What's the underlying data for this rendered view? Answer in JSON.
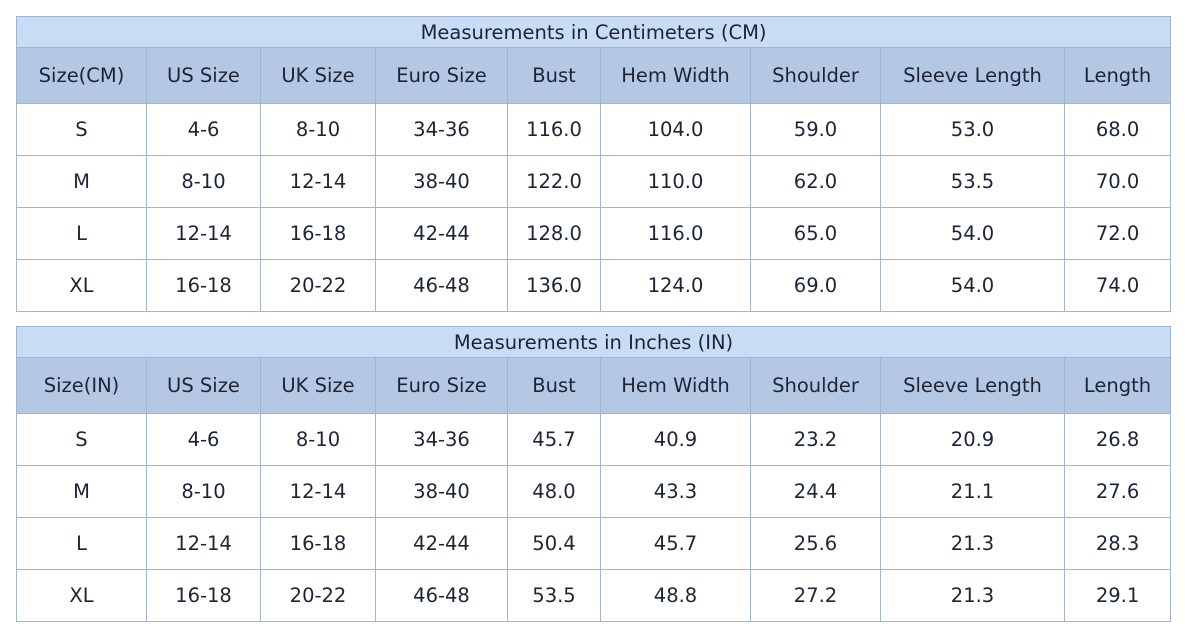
{
  "tables": [
    {
      "title": "Measurements in Centimeters (CM)",
      "headers": [
        "Size(CM)",
        "US Size",
        "UK Size",
        "Euro Size",
        "Bust",
        "Hem Width",
        "Shoulder",
        "Sleeve Length",
        "Length"
      ],
      "rows": [
        [
          "S",
          "4-6",
          "8-10",
          "34-36",
          "116.0",
          "104.0",
          "59.0",
          "53.0",
          "68.0"
        ],
        [
          "M",
          "8-10",
          "12-14",
          "38-40",
          "122.0",
          "110.0",
          "62.0",
          "53.5",
          "70.0"
        ],
        [
          "L",
          "12-14",
          "16-18",
          "42-44",
          "128.0",
          "116.0",
          "65.0",
          "54.0",
          "72.0"
        ],
        [
          "XL",
          "16-18",
          "20-22",
          "46-48",
          "136.0",
          "124.0",
          "69.0",
          "54.0",
          "74.0"
        ]
      ]
    },
    {
      "title": "Measurements in Inches (IN)",
      "headers": [
        "Size(IN)",
        "US Size",
        "UK Size",
        "Euro Size",
        "Bust",
        "Hem Width",
        "Shoulder",
        "Sleeve Length",
        "Length"
      ],
      "rows": [
        [
          "S",
          "4-6",
          "8-10",
          "34-36",
          "45.7",
          "40.9",
          "23.2",
          "20.9",
          "26.8"
        ],
        [
          "M",
          "8-10",
          "12-14",
          "38-40",
          "48.0",
          "43.3",
          "24.4",
          "21.1",
          "27.6"
        ],
        [
          "L",
          "12-14",
          "16-18",
          "42-44",
          "50.4",
          "45.7",
          "25.6",
          "21.3",
          "28.3"
        ],
        [
          "XL",
          "16-18",
          "20-22",
          "46-48",
          "53.5",
          "48.8",
          "27.2",
          "21.3",
          "29.1"
        ]
      ]
    }
  ],
  "colors": {
    "title_bg": "#c9dcf6",
    "header_bg": "#b4c8e4",
    "border": "#a0b5d5",
    "text": "#1c2436"
  }
}
